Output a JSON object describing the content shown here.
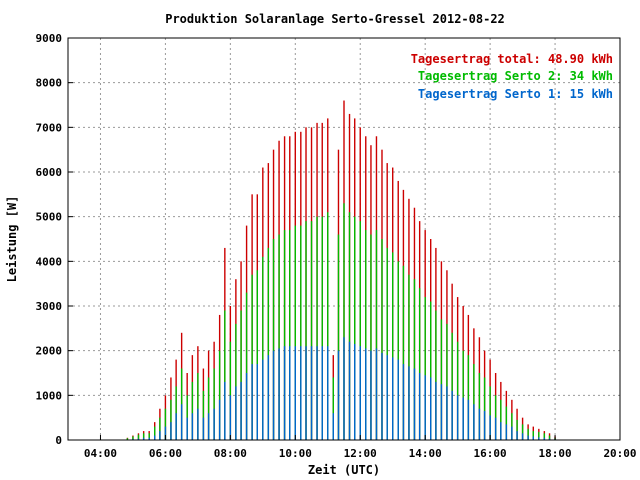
{
  "chart_data": {
    "type": "bar",
    "title": "Produktion Solaranlage Serto-Gressel 2012-08-22",
    "xlabel": "Zeit (UTC)",
    "ylabel": "Leistung [W]",
    "xlim": [
      3,
      20
    ],
    "ylim": [
      0,
      9000
    ],
    "grid": true,
    "legend_position": "top-right",
    "x_ticks": [
      "04:00",
      "06:00",
      "08:00",
      "10:00",
      "12:00",
      "14:00",
      "16:00",
      "18:00",
      "20:00"
    ],
    "y_ticks": [
      "0",
      "1000",
      "2000",
      "3000",
      "4000",
      "5000",
      "6000",
      "7000",
      "8000",
      "9000"
    ],
    "bar_step_hours": 0.0833,
    "series": [
      {
        "name": "Tagesertrag total: 48.90 kWh",
        "color": "#cc0000",
        "x": [
          4.83,
          5.0,
          5.17,
          5.33,
          5.5,
          5.67,
          5.83,
          6.0,
          6.17,
          6.33,
          6.5,
          6.67,
          6.83,
          7.0,
          7.17,
          7.33,
          7.5,
          7.67,
          7.83,
          8.0,
          8.17,
          8.33,
          8.5,
          8.67,
          8.83,
          9.0,
          9.17,
          9.33,
          9.5,
          9.67,
          9.83,
          10.0,
          10.17,
          10.33,
          10.5,
          10.67,
          10.83,
          11.0,
          11.17,
          11.33,
          11.5,
          11.67,
          11.83,
          12.0,
          12.17,
          12.33,
          12.5,
          12.67,
          12.83,
          13.0,
          13.17,
          13.33,
          13.5,
          13.67,
          13.83,
          14.0,
          14.17,
          14.33,
          14.5,
          14.67,
          14.83,
          15.0,
          15.17,
          15.33,
          15.5,
          15.67,
          15.83,
          16.0,
          16.17,
          16.33,
          16.5,
          16.67,
          16.83,
          17.0,
          17.17,
          17.33,
          17.5,
          17.67,
          17.83,
          18.0
        ],
        "values": [
          50,
          100,
          150,
          200,
          200,
          400,
          700,
          1000,
          1400,
          1800,
          2400,
          1500,
          1900,
          2100,
          1600,
          2000,
          2200,
          2800,
          4300,
          3000,
          3600,
          4000,
          4800,
          5500,
          5500,
          6100,
          6200,
          6500,
          6700,
          6800,
          6800,
          6900,
          6900,
          7000,
          7000,
          7100,
          7100,
          7200,
          1900,
          6500,
          7600,
          7300,
          7200,
          7000,
          6800,
          6600,
          6800,
          6500,
          6200,
          6100,
          5800,
          5600,
          5400,
          5200,
          4900,
          4700,
          4500,
          4300,
          4000,
          3800,
          3500,
          3200,
          3000,
          2800,
          2500,
          2300,
          2000,
          1800,
          1500,
          1300,
          1100,
          900,
          700,
          500,
          350,
          300,
          250,
          200,
          150,
          80
        ]
      },
      {
        "name": "Tagesertrag Serto 2: 34 kWh",
        "color": "#00bb00",
        "x": [
          4.83,
          5.0,
          5.17,
          5.33,
          5.5,
          5.67,
          5.83,
          6.0,
          6.17,
          6.33,
          6.5,
          6.67,
          6.83,
          7.0,
          7.17,
          7.33,
          7.5,
          7.67,
          7.83,
          8.0,
          8.17,
          8.33,
          8.5,
          8.67,
          8.83,
          9.0,
          9.17,
          9.33,
          9.5,
          9.67,
          9.83,
          10.0,
          10.17,
          10.33,
          10.5,
          10.67,
          10.83,
          11.0,
          11.17,
          11.33,
          11.5,
          11.67,
          11.83,
          12.0,
          12.17,
          12.33,
          12.5,
          12.67,
          12.83,
          13.0,
          13.17,
          13.33,
          13.5,
          13.67,
          13.83,
          14.0,
          14.17,
          14.33,
          14.5,
          14.67,
          14.83,
          15.0,
          15.17,
          15.33,
          15.5,
          15.67,
          15.83,
          16.0,
          16.17,
          16.33,
          16.5,
          16.67,
          16.83,
          17.0,
          17.17,
          17.33,
          17.5,
          17.67,
          17.83,
          18.0
        ],
        "values": [
          40,
          80,
          120,
          150,
          150,
          300,
          500,
          700,
          900,
          1200,
          1600,
          1000,
          1300,
          1500,
          1100,
          1400,
          1600,
          2000,
          2900,
          2200,
          2600,
          2900,
          3300,
          3700,
          3800,
          4100,
          4300,
          4500,
          4600,
          4700,
          4700,
          4800,
          4800,
          4900,
          4900,
          5000,
          5000,
          5100,
          1400,
          4600,
          5300,
          5100,
          5000,
          4900,
          4700,
          4600,
          4700,
          4500,
          4300,
          4200,
          4000,
          3900,
          3700,
          3600,
          3400,
          3200,
          3100,
          2900,
          2700,
          2600,
          2400,
          2200,
          2000,
          1900,
          1700,
          1500,
          1400,
          1200,
          1000,
          900,
          750,
          600,
          450,
          350,
          250,
          200,
          180,
          150,
          100,
          50
        ]
      },
      {
        "name": "Tagesertrag Serto 1: 15 kWh",
        "color": "#0066cc",
        "x": [
          4.83,
          5.0,
          5.17,
          5.33,
          5.5,
          5.67,
          5.83,
          6.0,
          6.17,
          6.33,
          6.5,
          6.67,
          6.83,
          7.0,
          7.17,
          7.33,
          7.5,
          7.67,
          7.83,
          8.0,
          8.17,
          8.33,
          8.5,
          8.67,
          8.83,
          9.0,
          9.17,
          9.33,
          9.5,
          9.67,
          9.83,
          10.0,
          10.17,
          10.33,
          10.5,
          10.67,
          10.83,
          11.0,
          11.17,
          11.33,
          11.5,
          11.67,
          11.83,
          12.0,
          12.17,
          12.33,
          12.5,
          12.67,
          12.83,
          13.0,
          13.17,
          13.33,
          13.5,
          13.67,
          13.83,
          14.0,
          14.17,
          14.33,
          14.5,
          14.67,
          14.83,
          15.0,
          15.17,
          15.33,
          15.5,
          15.67,
          15.83,
          16.0,
          16.17,
          16.33,
          16.5,
          16.67,
          16.83,
          17.0,
          17.17,
          17.33,
          17.5,
          17.67,
          17.83,
          18.0
        ],
        "values": [
          10,
          20,
          30,
          50,
          50,
          100,
          200,
          300,
          400,
          600,
          800,
          500,
          600,
          700,
          500,
          600,
          700,
          900,
          1300,
          1000,
          1200,
          1300,
          1500,
          1700,
          1700,
          1800,
          1900,
          2000,
          2050,
          2100,
          2100,
          2100,
          2100,
          2100,
          2100,
          2100,
          2100,
          2100,
          600,
          2000,
          2300,
          2200,
          2150,
          2100,
          2050,
          2000,
          2050,
          1950,
          1900,
          1850,
          1800,
          1700,
          1650,
          1600,
          1500,
          1450,
          1400,
          1300,
          1250,
          1200,
          1100,
          1000,
          950,
          900,
          800,
          700,
          650,
          550,
          500,
          400,
          350,
          300,
          200,
          150,
          100,
          80,
          60,
          50,
          30,
          20
        ]
      }
    ]
  }
}
